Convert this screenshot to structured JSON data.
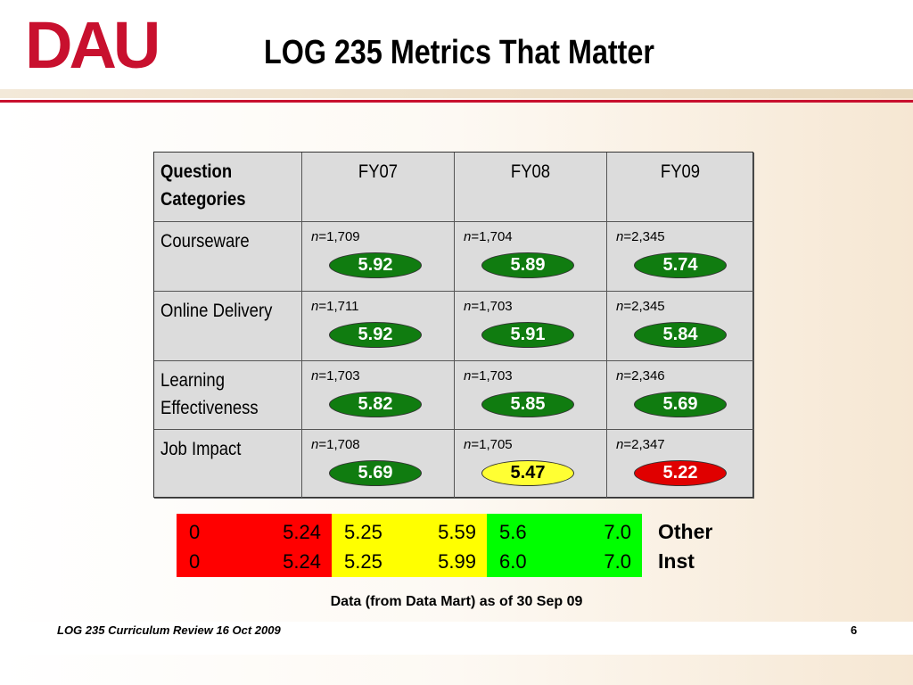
{
  "header": {
    "logo": "DAU",
    "title": "LOG 235 Metrics That Matter"
  },
  "table": {
    "columns": [
      "Question Categories",
      "FY07",
      "FY08",
      "FY09"
    ],
    "rows": [
      {
        "category": "Courseware",
        "cells": [
          {
            "n": "n=1,709",
            "score": "5.92",
            "color": "green"
          },
          {
            "n": "n=1,704",
            "score": "5.89",
            "color": "green"
          },
          {
            "n": "n=2,345",
            "score": "5.74",
            "color": "green"
          }
        ]
      },
      {
        "category": "Online Delivery",
        "cells": [
          {
            "n": "n=1,711",
            "score": "5.92",
            "color": "green"
          },
          {
            "n": "n=1,703",
            "score": "5.91",
            "color": "green"
          },
          {
            "n": "n=2,345",
            "score": "5.84",
            "color": "green"
          }
        ]
      },
      {
        "category": "Learning Effectiveness",
        "cells": [
          {
            "n": "n=1,703",
            "score": "5.82",
            "color": "green"
          },
          {
            "n": "n=1,703",
            "score": "5.85",
            "color": "green"
          },
          {
            "n": "n=2,346",
            "score": "5.69",
            "color": "green"
          }
        ]
      },
      {
        "category": "Job Impact",
        "cells": [
          {
            "n": "n=1,708",
            "score": "5.69",
            "color": "green"
          },
          {
            "n": "n=1,705",
            "score": "5.47",
            "color": "yellow"
          },
          {
            "n": "n=2,347",
            "score": "5.22",
            "color": "red"
          }
        ]
      }
    ]
  },
  "legend": {
    "bands": [
      {
        "color": "red",
        "rows": [
          [
            "0",
            "5.24"
          ],
          [
            "0",
            "5.24"
          ]
        ]
      },
      {
        "color": "yellow",
        "rows": [
          [
            "5.25",
            "5.59"
          ],
          [
            "5.25",
            "5.99"
          ]
        ]
      },
      {
        "color": "green",
        "rows": [
          [
            "5.6",
            "7.0"
          ],
          [
            "6.0",
            "7.0"
          ]
        ]
      }
    ],
    "labels": [
      "Other",
      "Inst"
    ]
  },
  "note": "Data (from Data Mart) as of 30 Sep 09",
  "footer": {
    "text": "LOG 235 Curriculum Review 16 Oct 2009",
    "page": "6"
  }
}
